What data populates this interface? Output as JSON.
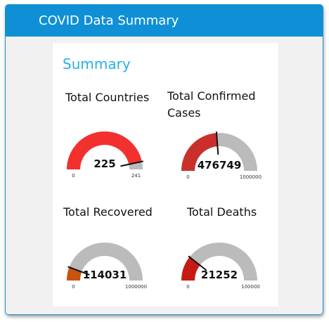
{
  "window": {
    "title": "COVID Data Summary"
  },
  "section": {
    "heading": "Summary"
  },
  "gauges": [
    {
      "title": "Total Countries",
      "value": 225,
      "display": "225",
      "min": 0,
      "max": 241,
      "min_label": "0",
      "max_label": "241",
      "color": "#f2312e"
    },
    {
      "title": "Total Confirmed Cases",
      "value": 476749,
      "display": "476749",
      "min": 0,
      "max": 1000000,
      "min_label": "0",
      "max_label": "1000000",
      "color": "#c9302c"
    },
    {
      "title": "Total Recovered",
      "value": 114031,
      "display": "114031",
      "min": 0,
      "max": 1000000,
      "min_label": "0",
      "max_label": "1000000",
      "color": "#c8540d"
    },
    {
      "title": "Total Deaths",
      "value": 21252,
      "display": "21252",
      "min": 0,
      "max": 100000,
      "min_label": "0",
      "max_label": "100000",
      "color": "#c81a14"
    }
  ],
  "colors": {
    "track": "#bbbbbb",
    "needle": "#111111",
    "accent": "#0f90d6"
  }
}
